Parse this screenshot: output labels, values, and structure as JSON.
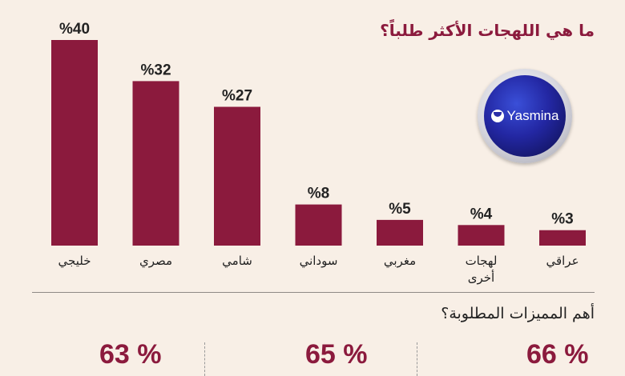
{
  "header": {
    "title": "ما هي اللهجات الأكثر طلباً؟"
  },
  "logo": {
    "text": "Yasmina"
  },
  "chart_data": {
    "type": "bar",
    "title": "ما هي اللهجات الأكثر طلباً؟",
    "categories": [
      [
        "خليجي"
      ],
      [
        "مصري"
      ],
      [
        "شامي"
      ],
      [
        "سوداني"
      ],
      [
        "مغربي"
      ],
      [
        "لهجات",
        "أخرى"
      ],
      [
        "عراقي"
      ]
    ],
    "values": [
      40,
      32,
      27,
      8,
      5,
      4,
      3
    ],
    "value_labels": [
      "%40",
      "%32",
      "%27",
      "%8",
      "%5",
      "%4",
      "%3"
    ],
    "ylim": [
      0,
      40
    ],
    "bar_color": "#8b1a3d",
    "grid": false
  },
  "features": {
    "title": "أهم المميزات المطلوبة؟",
    "stats": [
      "66 %",
      "65 %",
      "63 %"
    ]
  },
  "colors": {
    "accent": "#8b1a3d",
    "background": "#f8efe6"
  }
}
